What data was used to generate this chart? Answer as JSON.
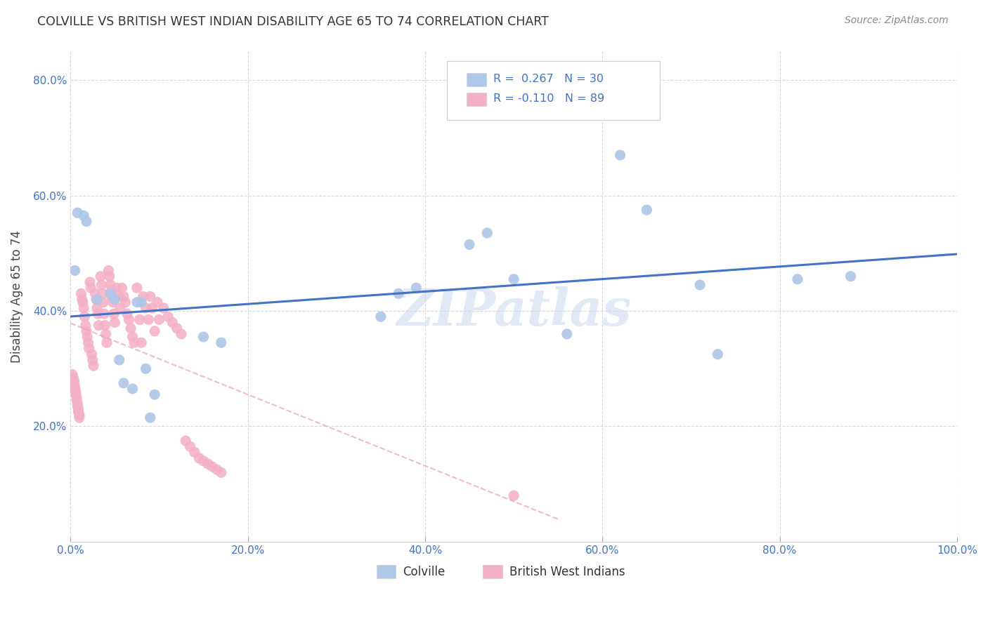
{
  "title": "COLVILLE VS BRITISH WEST INDIAN DISABILITY AGE 65 TO 74 CORRELATION CHART",
  "source": "Source: ZipAtlas.com",
  "xlabel": "",
  "ylabel": "Disability Age 65 to 74",
  "xlim": [
    0.0,
    1.0
  ],
  "ylim": [
    0.0,
    0.85
  ],
  "xticks": [
    0.0,
    0.2,
    0.4,
    0.6,
    0.8,
    1.0
  ],
  "xticklabels": [
    "0.0%",
    "20.0%",
    "40.0%",
    "60.0%",
    "80.0%",
    "100.0%"
  ],
  "yticks": [
    0.2,
    0.4,
    0.6,
    0.8
  ],
  "yticklabels": [
    "20.0%",
    "40.0%",
    "60.0%",
    "80.0%"
  ],
  "legend_r_colville": "R =  0.267",
  "legend_n_colville": "N = 30",
  "legend_r_bwi": "R = -0.110",
  "legend_n_bwi": "N = 89",
  "colville_color": "#aec6e8",
  "bwi_color": "#f4b0c4",
  "colville_line_color": "#4472c4",
  "bwi_line_color": "#f4b0c4",
  "watermark": "ZIPatlas",
  "colville_x": [
    0.005,
    0.008,
    0.015,
    0.018,
    0.03,
    0.045,
    0.05,
    0.055,
    0.06,
    0.07,
    0.075,
    0.08,
    0.085,
    0.09,
    0.095,
    0.15,
    0.17,
    0.35,
    0.37,
    0.39,
    0.45,
    0.47,
    0.5,
    0.56,
    0.62,
    0.65,
    0.71,
    0.73,
    0.82,
    0.88
  ],
  "colville_y": [
    0.47,
    0.57,
    0.565,
    0.555,
    0.42,
    0.43,
    0.42,
    0.315,
    0.275,
    0.265,
    0.415,
    0.415,
    0.3,
    0.215,
    0.255,
    0.355,
    0.345,
    0.39,
    0.43,
    0.44,
    0.515,
    0.535,
    0.455,
    0.36,
    0.67,
    0.575,
    0.445,
    0.325,
    0.455,
    0.46
  ],
  "bwi_x": [
    0.002,
    0.003,
    0.004,
    0.004,
    0.005,
    0.005,
    0.006,
    0.006,
    0.007,
    0.007,
    0.008,
    0.008,
    0.009,
    0.009,
    0.01,
    0.01,
    0.012,
    0.013,
    0.014,
    0.015,
    0.016,
    0.017,
    0.018,
    0.019,
    0.02,
    0.021,
    0.022,
    0.023,
    0.024,
    0.025,
    0.026,
    0.028,
    0.029,
    0.03,
    0.031,
    0.032,
    0.034,
    0.035,
    0.036,
    0.037,
    0.038,
    0.039,
    0.04,
    0.041,
    0.043,
    0.044,
    0.045,
    0.046,
    0.047,
    0.048,
    0.049,
    0.05,
    0.052,
    0.054,
    0.056,
    0.058,
    0.06,
    0.062,
    0.064,
    0.066,
    0.068,
    0.07,
    0.072,
    0.075,
    0.078,
    0.08,
    0.082,
    0.085,
    0.088,
    0.09,
    0.092,
    0.095,
    0.098,
    0.1,
    0.105,
    0.11,
    0.115,
    0.12,
    0.125,
    0.13,
    0.135,
    0.14,
    0.145,
    0.15,
    0.155,
    0.16,
    0.165,
    0.17,
    0.5
  ],
  "bwi_y": [
    0.29,
    0.285,
    0.28,
    0.275,
    0.27,
    0.265,
    0.26,
    0.255,
    0.25,
    0.245,
    0.24,
    0.235,
    0.23,
    0.225,
    0.22,
    0.215,
    0.43,
    0.42,
    0.415,
    0.405,
    0.39,
    0.375,
    0.365,
    0.355,
    0.345,
    0.335,
    0.45,
    0.44,
    0.325,
    0.315,
    0.305,
    0.43,
    0.42,
    0.405,
    0.395,
    0.375,
    0.46,
    0.445,
    0.43,
    0.415,
    0.395,
    0.375,
    0.36,
    0.345,
    0.47,
    0.46,
    0.445,
    0.435,
    0.425,
    0.415,
    0.395,
    0.38,
    0.44,
    0.425,
    0.405,
    0.44,
    0.425,
    0.415,
    0.395,
    0.385,
    0.37,
    0.355,
    0.345,
    0.44,
    0.385,
    0.345,
    0.425,
    0.405,
    0.385,
    0.425,
    0.405,
    0.365,
    0.415,
    0.385,
    0.405,
    0.39,
    0.38,
    0.37,
    0.36,
    0.175,
    0.165,
    0.155,
    0.145,
    0.14,
    0.135,
    0.13,
    0.125,
    0.12,
    0.08
  ],
  "background_color": "#ffffff",
  "grid_color": "#d8d8d8"
}
